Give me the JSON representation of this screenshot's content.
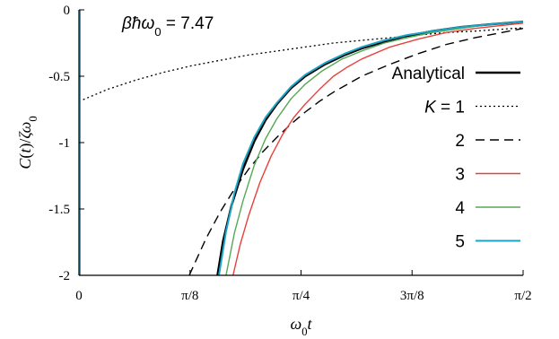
{
  "chart_data": {
    "type": "line",
    "annotation": {
      "parts": [
        {
          "text": "β",
          "style": "italic"
        },
        {
          "text": "ħ",
          "style": "italic"
        },
        {
          "text": "ω",
          "style": "italic"
        },
        {
          "text": "0",
          "style": "sub"
        },
        {
          "text": " = 7.47",
          "style": "normal"
        }
      ]
    },
    "xlabel": {
      "parts": [
        {
          "text": "ω",
          "style": "italic"
        },
        {
          "text": "0",
          "style": "sub"
        },
        {
          "text": "t",
          "style": "italic"
        }
      ]
    },
    "ylabel": {
      "parts": [
        {
          "text": "C",
          "style": "italic"
        },
        {
          "text": "(",
          "style": "normal"
        },
        {
          "text": "t",
          "style": "italic"
        },
        {
          "text": ")/",
          "style": "normal"
        },
        {
          "text": "ζω",
          "style": "italic"
        },
        {
          "text": "0",
          "style": "sub"
        }
      ]
    },
    "xlim": [
      0,
      1.5707963
    ],
    "ylim": [
      -2,
      0
    ],
    "x_ticks": [
      {
        "value": 0,
        "label": "0"
      },
      {
        "value": 0.3926991,
        "label": "π/8"
      },
      {
        "value": 0.7853982,
        "label": "π/4"
      },
      {
        "value": 1.1780972,
        "label": "3π/8"
      },
      {
        "value": 1.5707963,
        "label": "π/2"
      }
    ],
    "y_ticks": [
      {
        "value": 0,
        "label": "0"
      },
      {
        "value": -0.5,
        "label": "-0.5"
      },
      {
        "value": -1,
        "label": "-1"
      },
      {
        "value": -1.5,
        "label": "-1.5"
      },
      {
        "value": -2,
        "label": "-2"
      }
    ],
    "legend_position": "right",
    "series": [
      {
        "name": "Analytical",
        "color": "#000000",
        "dash": "solid",
        "width": 2.5,
        "x": [
          0.49,
          0.51,
          0.54,
          0.58,
          0.62,
          0.66,
          0.7,
          0.75,
          0.8,
          0.87,
          0.94,
          1.0,
          1.08,
          1.15,
          1.25,
          1.35,
          1.45,
          1.5708
        ],
        "y": [
          -2.0,
          -1.74,
          -1.47,
          -1.2,
          -0.99,
          -0.83,
          -0.71,
          -0.59,
          -0.5,
          -0.41,
          -0.34,
          -0.29,
          -0.24,
          -0.2,
          -0.16,
          -0.13,
          -0.11,
          -0.09
        ]
      },
      {
        "name": "1",
        "legend_label_parts": [
          {
            "text": "K",
            "style": "italic"
          },
          {
            "text": " = 1",
            "style": "normal"
          }
        ],
        "color": "#000000",
        "dash": "2,3",
        "width": 1.3,
        "x": [
          0,
          0.1,
          0.2,
          0.3,
          0.4,
          0.5,
          0.6,
          0.7,
          0.8,
          0.9,
          1.0,
          1.1,
          1.2,
          1.3,
          1.4,
          1.5,
          1.5708
        ],
        "y": [
          -0.69,
          -0.6,
          -0.53,
          -0.47,
          -0.42,
          -0.38,
          -0.34,
          -0.31,
          -0.28,
          -0.25,
          -0.23,
          -0.21,
          -0.19,
          -0.17,
          -0.16,
          -0.145,
          -0.135
        ]
      },
      {
        "name": "2",
        "color": "#000000",
        "dash": "10,6",
        "width": 1.4,
        "x": [
          0.39,
          0.45,
          0.5,
          0.55,
          0.6,
          0.65,
          0.7,
          0.75,
          0.8,
          0.85,
          0.9,
          1.0,
          1.1,
          1.2,
          1.3,
          1.4,
          1.5708
        ],
        "y": [
          -2.0,
          -1.72,
          -1.52,
          -1.35,
          -1.2,
          -1.07,
          -0.96,
          -0.86,
          -0.77,
          -0.69,
          -0.62,
          -0.5,
          -0.41,
          -0.33,
          -0.26,
          -0.21,
          -0.14
        ]
      },
      {
        "name": "3",
        "color": "#e8403a",
        "dash": "solid",
        "width": 1.4,
        "x": [
          0.545,
          0.57,
          0.6,
          0.64,
          0.68,
          0.72,
          0.76,
          0.8,
          0.85,
          0.9,
          0.95,
          1.0,
          1.1,
          1.2,
          1.3,
          1.4,
          1.5708
        ],
        "y": [
          -2.0,
          -1.77,
          -1.55,
          -1.3,
          -1.1,
          -0.94,
          -0.81,
          -0.71,
          -0.6,
          -0.5,
          -0.43,
          -0.37,
          -0.28,
          -0.22,
          -0.17,
          -0.14,
          -0.1
        ]
      },
      {
        "name": "4",
        "color": "#55a855",
        "dash": "solid",
        "width": 1.4,
        "x": [
          0.52,
          0.55,
          0.58,
          0.62,
          0.66,
          0.7,
          0.75,
          0.8,
          0.86,
          0.93,
          1.0,
          1.08,
          1.16,
          1.25,
          1.35,
          1.45,
          1.5708
        ],
        "y": [
          -2.0,
          -1.68,
          -1.44,
          -1.17,
          -0.97,
          -0.82,
          -0.67,
          -0.56,
          -0.46,
          -0.37,
          -0.31,
          -0.25,
          -0.21,
          -0.17,
          -0.14,
          -0.11,
          -0.09
        ]
      },
      {
        "name": "5",
        "color": "#1aa5c6",
        "dash": "solid",
        "width": 2,
        "x": [
          0.495,
          0.52,
          0.55,
          0.58,
          0.62,
          0.66,
          0.7,
          0.75,
          0.8,
          0.87,
          0.94,
          1.0,
          1.08,
          1.16,
          1.25,
          1.35,
          1.45,
          1.5708
        ],
        "y": [
          -2.0,
          -1.67,
          -1.38,
          -1.16,
          -0.96,
          -0.81,
          -0.7,
          -0.58,
          -0.49,
          -0.4,
          -0.33,
          -0.28,
          -0.23,
          -0.19,
          -0.16,
          -0.13,
          -0.11,
          -0.09
        ]
      }
    ],
    "legend_order": [
      "Analytical",
      "1",
      "2",
      "3",
      "4",
      "5"
    ]
  }
}
